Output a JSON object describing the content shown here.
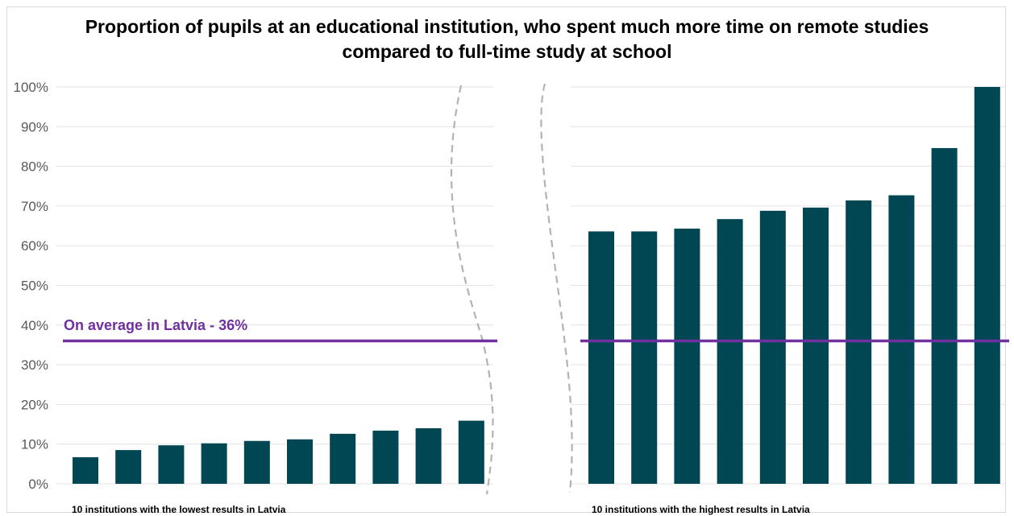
{
  "chart_data": {
    "type": "bar",
    "title": "Proportion of pupils at an educational institution, who spent much more time on remote studies compared to full-time study at school",
    "title_lines": [
      "Proportion of pupils at an educational institution, who spent much more time on remote studies",
      "compared to full-time study at school"
    ],
    "ylim": [
      0,
      100
    ],
    "y_ticks": [
      "0%",
      "10%",
      "20%",
      "30%",
      "40%",
      "50%",
      "60%",
      "70%",
      "80%",
      "90%",
      "100%"
    ],
    "gridlines": true,
    "bar_color": "#004753",
    "average": {
      "value": 36,
      "label": "On average in Latvia - 36%",
      "color": "#7030a0"
    },
    "groups": [
      {
        "label": "10 institutions with the lowest results in Latvia",
        "values": [
          6.7,
          8.5,
          9.7,
          10.2,
          10.8,
          11.2,
          12.6,
          13.4,
          14.0,
          15.9
        ]
      },
      {
        "label": "10 institutions with the highest results in Latvia",
        "values": [
          63.6,
          63.6,
          64.3,
          66.7,
          68.8,
          69.6,
          71.4,
          72.7,
          84.6,
          100
        ]
      }
    ]
  }
}
